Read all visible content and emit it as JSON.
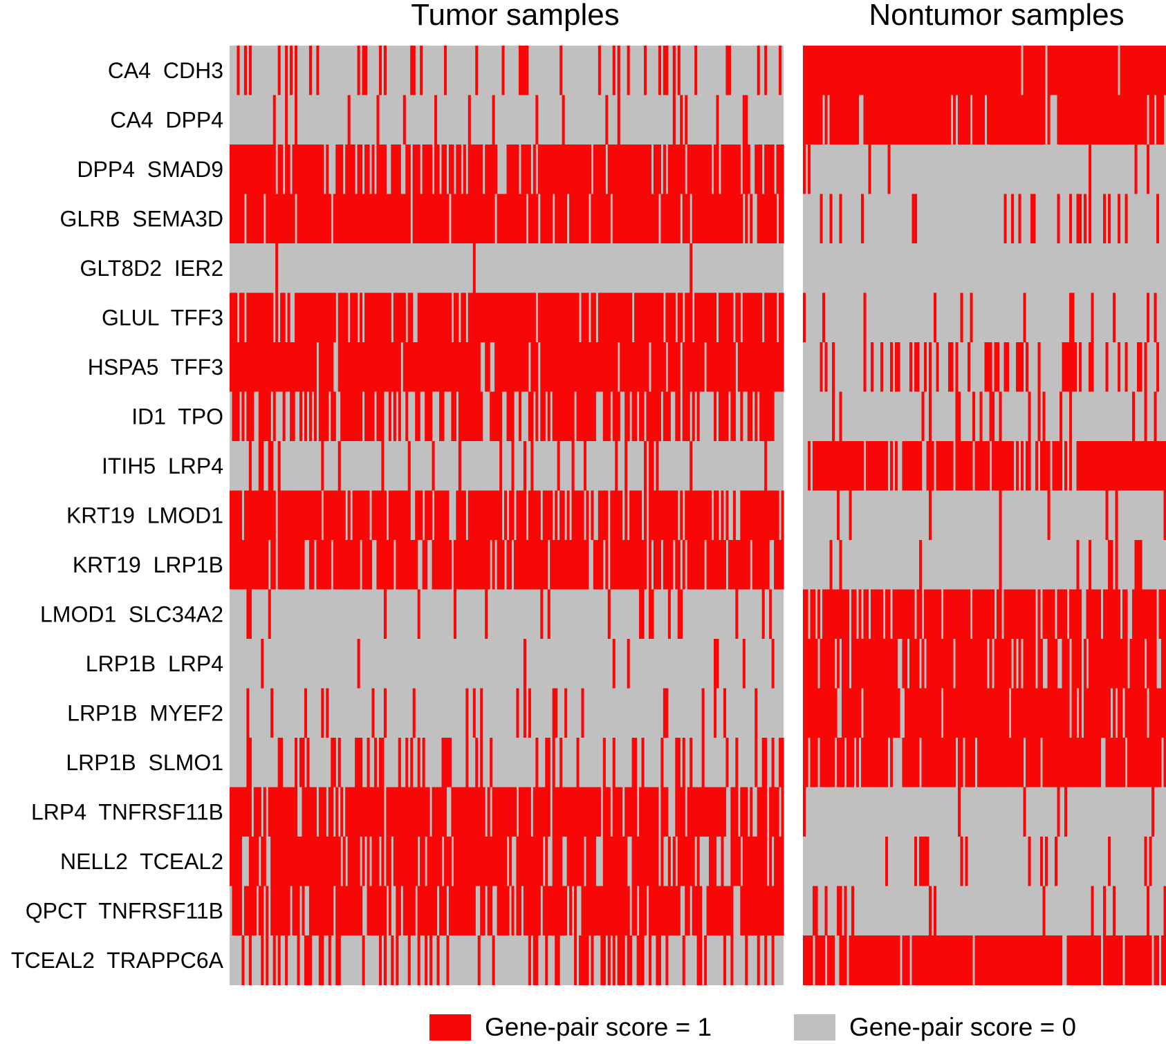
{
  "chart_data": {
    "type": "heatmap",
    "panels": [
      {
        "title": "Tumor samples"
      },
      {
        "title": "Nontumor samples"
      }
    ],
    "rows": [
      "CA4  CDH3",
      "CA4  DPP4",
      "DPP4  SMAD9",
      "GLRB  SEMA3D",
      "GLT8D2  IER2",
      "GLUL  TFF3",
      "HSPA5  TFF3",
      "ID1  TPO",
      "ITIH5  LRP4",
      "KRT19  LMOD1",
      "KRT19  LRP1B",
      "LMOD1  SLC34A2",
      "LRP1B  LRP4",
      "LRP1B  MYEF2",
      "LRP1B  SLMO1",
      "LRP4  TNFRSF11B",
      "NELL2  TCEAL2",
      "QPCT  TNFRSF11B",
      "TCEAL2  TRAPPC6A"
    ],
    "tumor_fraction_score1": [
      0.15,
      0.08,
      0.85,
      0.88,
      0.02,
      0.85,
      0.93,
      0.62,
      0.12,
      0.83,
      0.86,
      0.08,
      0.05,
      0.1,
      0.22,
      0.85,
      0.78,
      0.85,
      0.25
    ],
    "nontumor_fraction_score1": [
      0.96,
      0.96,
      0.08,
      0.12,
      0.0,
      0.12,
      0.3,
      0.15,
      0.85,
      0.06,
      0.1,
      0.82,
      0.85,
      0.88,
      0.86,
      0.02,
      0.12,
      0.08,
      0.92
    ],
    "legend": [
      {
        "label": "Gene-pair score = 1",
        "color": "#f90606"
      },
      {
        "label": "Gene-pair score = 0",
        "color": "#c0c0c0"
      }
    ],
    "colors": {
      "score1": "#f90606",
      "score0": "#c0c0c0"
    }
  }
}
